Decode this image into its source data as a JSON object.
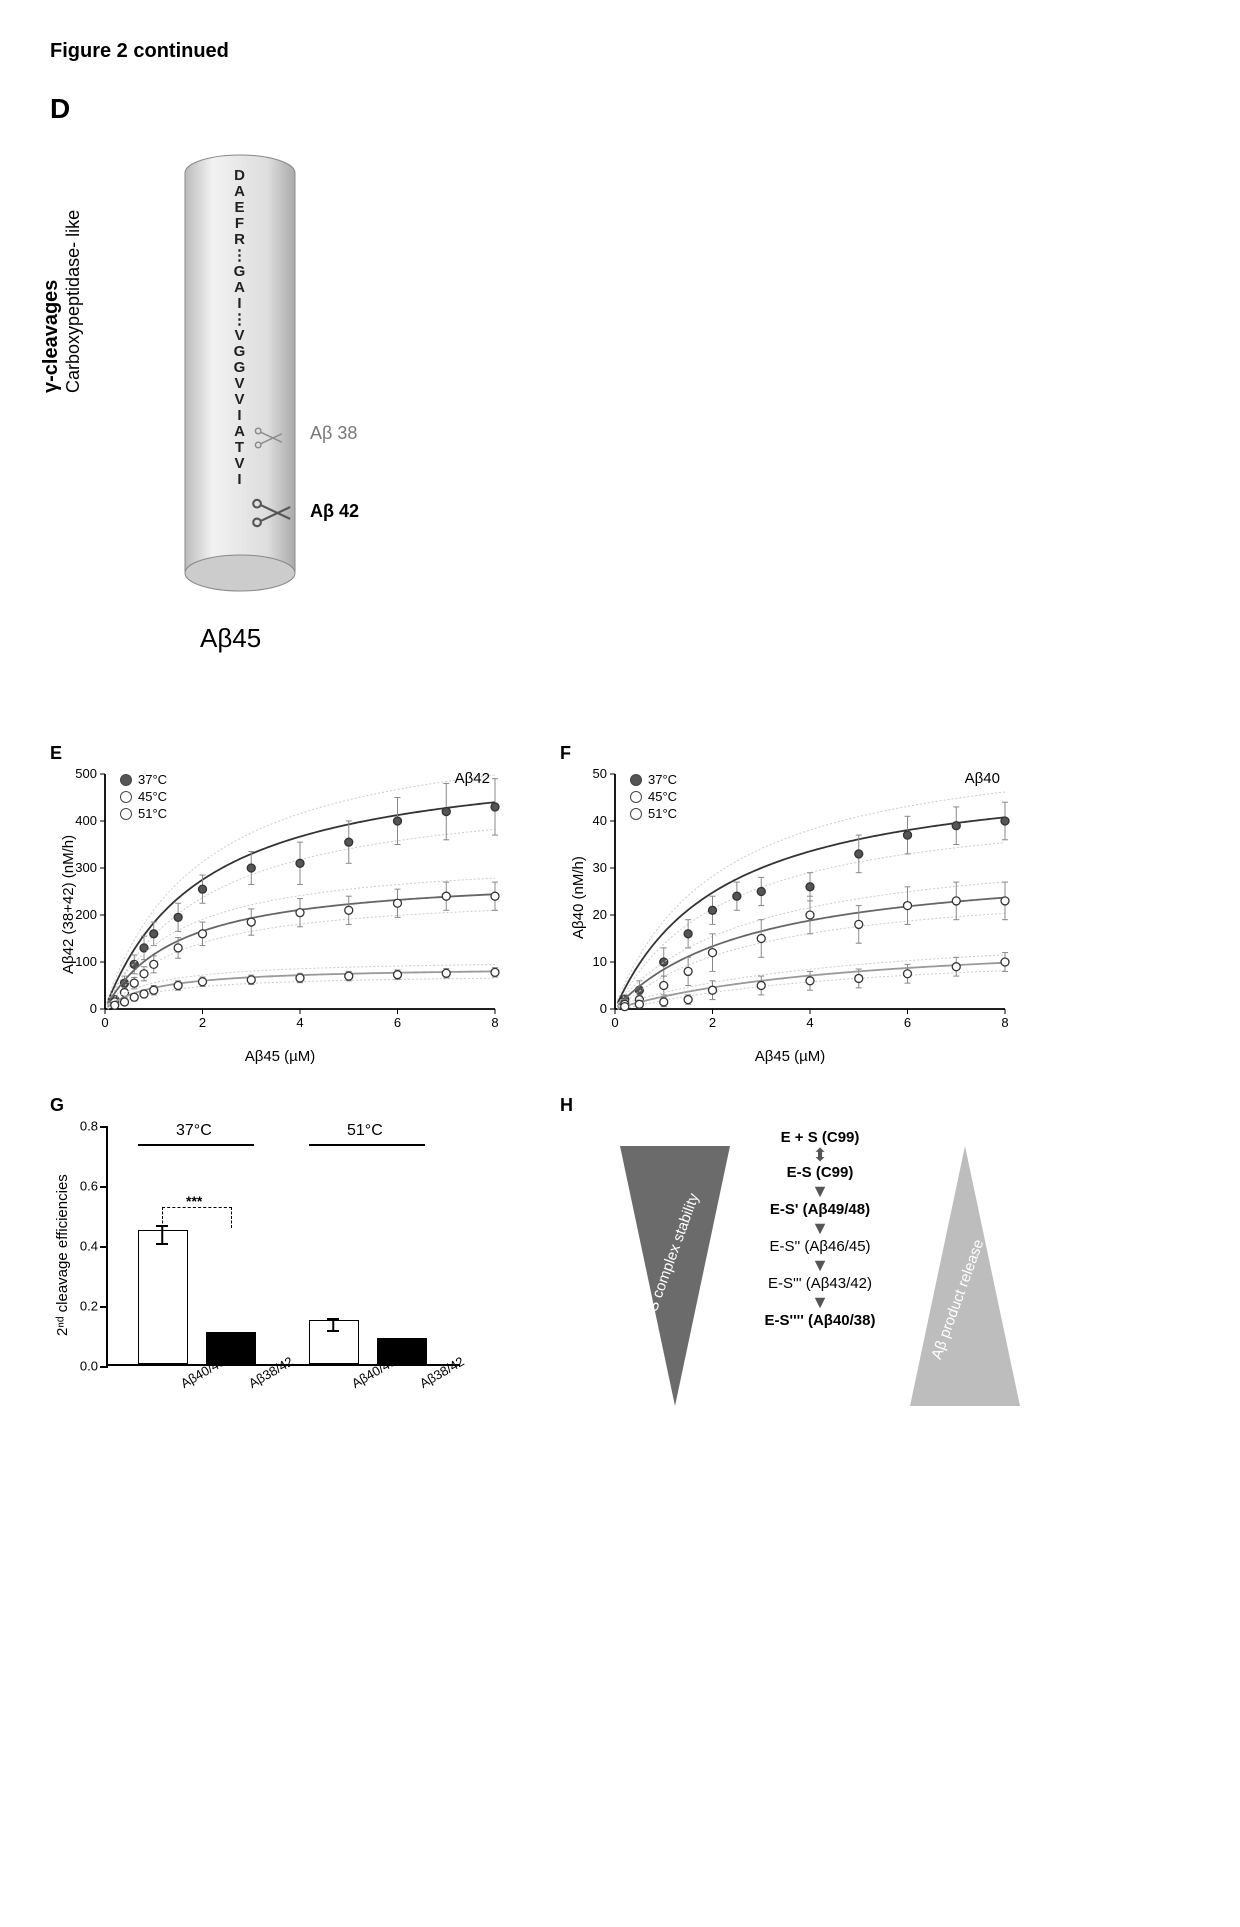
{
  "figure_title": "Figure 2 continued",
  "panels": {
    "D": {
      "label": "D",
      "side_text_top": "γ-cleavages",
      "side_text_bottom": "Carboxypeptidase- like",
      "sequence": "D\nA\nE\nF\nR\n⋮\nG\nA\nI\n⋮\nV\nG\nG\nV\nV\nI\nA\nT\nV\nI",
      "cut38_label": "Aβ 38",
      "cut42_label": "Aβ 42",
      "bottom_label": "Aβ45",
      "cyl_fill": "#e8e8e8",
      "cyl_stroke": "#888888"
    },
    "E": {
      "label": "E",
      "ylabel": "Aβ42 (38+42) (nM/h)",
      "xlabel": "Aβ45 (µM)",
      "title_right": "Aβ42",
      "xlim": [
        0,
        8
      ],
      "ylim": [
        0,
        500
      ],
      "yticks": [
        0,
        100,
        200,
        300,
        400,
        500
      ],
      "xticks": [
        0,
        2,
        4,
        6,
        8
      ],
      "series": [
        {
          "name": "37°C",
          "marker_fill": "#555555",
          "curve_color": "#333333",
          "points": [
            [
              0.2,
              20
            ],
            [
              0.4,
              55
            ],
            [
              0.6,
              95
            ],
            [
              0.8,
              130
            ],
            [
              1.0,
              160
            ],
            [
              1.5,
              195
            ],
            [
              2.0,
              255
            ],
            [
              3.0,
              300
            ],
            [
              4.0,
              310
            ],
            [
              5.0,
              355
            ],
            [
              6.0,
              400
            ],
            [
              7.0,
              420
            ],
            [
              8.0,
              430
            ]
          ],
          "yerr": [
            8,
            15,
            20,
            25,
            25,
            30,
            30,
            35,
            45,
            45,
            50,
            60,
            60
          ],
          "vmax": 550,
          "km": 2.0
        },
        {
          "name": "45°C",
          "marker_fill": "#ffffff",
          "curve_color": "#666666",
          "points": [
            [
              0.2,
              15
            ],
            [
              0.4,
              35
            ],
            [
              0.6,
              55
            ],
            [
              0.8,
              75
            ],
            [
              1.0,
              95
            ],
            [
              1.5,
              130
            ],
            [
              2.0,
              160
            ],
            [
              3.0,
              185
            ],
            [
              4.0,
              205
            ],
            [
              5.0,
              210
            ],
            [
              6.0,
              225
            ],
            [
              7.0,
              240
            ],
            [
              8.0,
              240
            ]
          ],
          "yerr": [
            8,
            10,
            12,
            15,
            18,
            22,
            25,
            28,
            30,
            30,
            30,
            30,
            30
          ],
          "vmax": 290,
          "km": 1.5
        },
        {
          "name": "51°C",
          "marker_fill": "#ffffff",
          "curve_color": "#999999",
          "points": [
            [
              0.2,
              8
            ],
            [
              0.4,
              15
            ],
            [
              0.6,
              25
            ],
            [
              0.8,
              32
            ],
            [
              1.0,
              40
            ],
            [
              1.5,
              50
            ],
            [
              2.0,
              58
            ],
            [
              3.0,
              62
            ],
            [
              4.0,
              66
            ],
            [
              5.0,
              70
            ],
            [
              6.0,
              73
            ],
            [
              7.0,
              76
            ],
            [
              8.0,
              78
            ]
          ],
          "yerr": [
            5,
            6,
            8,
            8,
            10,
            10,
            10,
            10,
            10,
            10,
            10,
            10,
            10
          ],
          "vmax": 90,
          "km": 1.0
        }
      ]
    },
    "F": {
      "label": "F",
      "ylabel": "Aβ40 (nM/h)",
      "xlabel": "Aβ45 (µM)",
      "title_right": "Aβ40",
      "xlim": [
        0,
        8
      ],
      "ylim": [
        0,
        50
      ],
      "yticks": [
        0,
        10,
        20,
        30,
        40,
        50
      ],
      "xticks": [
        0,
        2,
        4,
        6,
        8
      ],
      "series": [
        {
          "name": "37°C",
          "marker_fill": "#555555",
          "curve_color": "#333333",
          "points": [
            [
              0.2,
              2
            ],
            [
              0.5,
              4
            ],
            [
              1.0,
              10
            ],
            [
              1.5,
              16
            ],
            [
              2.0,
              21
            ],
            [
              2.5,
              24
            ],
            [
              3.0,
              25
            ],
            [
              4.0,
              26
            ],
            [
              5.0,
              33
            ],
            [
              6.0,
              37
            ],
            [
              7.0,
              39
            ],
            [
              8.0,
              40
            ]
          ],
          "yerr": [
            1,
            2,
            3,
            3,
            3,
            3,
            3,
            3,
            4,
            4,
            4,
            4
          ],
          "vmax": 52,
          "km": 2.2
        },
        {
          "name": "45°C",
          "marker_fill": "#ffffff",
          "curve_color": "#666666",
          "points": [
            [
              0.2,
              1
            ],
            [
              0.5,
              2
            ],
            [
              1.0,
              5
            ],
            [
              1.5,
              8
            ],
            [
              2.0,
              12
            ],
            [
              3.0,
              15
            ],
            [
              4.0,
              20
            ],
            [
              5.0,
              18
            ],
            [
              6.0,
              22
            ],
            [
              7.0,
              23
            ],
            [
              8.0,
              23
            ]
          ],
          "yerr": [
            1,
            1,
            2,
            3,
            4,
            4,
            4,
            4,
            4,
            4,
            4
          ],
          "vmax": 32,
          "km": 2.8
        },
        {
          "name": "51°C",
          "marker_fill": "#ffffff",
          "curve_color": "#999999",
          "points": [
            [
              0.2,
              0.5
            ],
            [
              0.5,
              1
            ],
            [
              1.0,
              1.5
            ],
            [
              1.5,
              2
            ],
            [
              2.0,
              4
            ],
            [
              3.0,
              5
            ],
            [
              4.0,
              6
            ],
            [
              5.0,
              6.5
            ],
            [
              6.0,
              7.5
            ],
            [
              7.0,
              9
            ],
            [
              8.0,
              10
            ]
          ],
          "yerr": [
            0.5,
            0.8,
            1,
            1,
            2,
            2,
            2,
            2,
            2,
            2,
            2
          ],
          "vmax": 16,
          "km": 5.0
        }
      ]
    },
    "G": {
      "label": "G",
      "ylabel": "2ⁿᵈ cleavage efficiencies",
      "ylim": [
        0.0,
        0.8
      ],
      "yticks": [
        0.0,
        0.2,
        0.4,
        0.6,
        0.8
      ],
      "groups": [
        {
          "temp": "37°C",
          "bars": [
            {
              "label": "Aβ40/43",
              "value": 0.44,
              "err": 0.03,
              "fill": "open"
            },
            {
              "label": "Aβ38/42",
              "value": 0.1,
              "err": 0.01,
              "fill": "filled"
            }
          ],
          "sig": "***"
        },
        {
          "temp": "51°C",
          "bars": [
            {
              "label": "Aβ40/43",
              "value": 0.14,
              "err": 0.02,
              "fill": "open"
            },
            {
              "label": "Aβ38/42",
              "value": 0.08,
              "err": 0.01,
              "fill": "filled"
            }
          ]
        }
      ]
    },
    "H": {
      "label": "H",
      "left_triangle_text": "E-S complex stability",
      "right_triangle_text": "Aβ product release",
      "left_color": "#6b6b6b",
      "right_color": "#bdbdbd",
      "flow": [
        {
          "text": "E + S (C99)",
          "bold": true
        },
        {
          "text": "E-S (C99)",
          "bold": true
        },
        {
          "text": "E-S' (Aβ49/48)",
          "bold": true
        },
        {
          "text": "E-S'' (Aβ46/45)",
          "bold": false
        },
        {
          "text": "E-S''' (Aβ43/42)",
          "bold": false
        },
        {
          "text": "E-S'''' (Aβ40/38)",
          "bold": true
        }
      ]
    }
  },
  "chart_style": {
    "axis_color": "#000000",
    "grid_color": "#e0e0e0",
    "font_size_axis": 13,
    "font_size_label": 15,
    "marker_size": 4,
    "line_width": 1.5,
    "ci_color": "#cccccc"
  }
}
